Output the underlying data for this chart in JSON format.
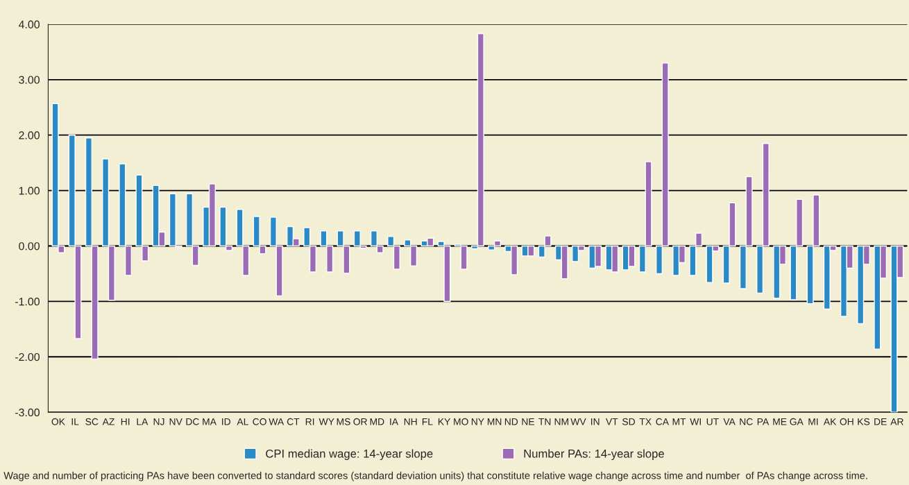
{
  "chart_data": {
    "type": "bar",
    "categories": [
      "OK",
      "IL",
      "SC",
      "AZ",
      "HI",
      "LA",
      "NJ",
      "NV",
      "DC",
      "MA",
      "ID",
      "AL",
      "CO",
      "WA",
      "CT",
      "RI",
      "WY",
      "MS",
      "OR",
      "MD",
      "IA",
      "NH",
      "FL",
      "KY",
      "MO",
      "NY",
      "MN",
      "ND",
      "NE",
      "TN",
      "NM",
      "WV",
      "IN",
      "VT",
      "SD",
      "TX",
      "CA",
      "MT",
      "WI",
      "UT",
      "VA",
      "NC",
      "PA",
      "ME",
      "GA",
      "MI",
      "AK",
      "OH",
      "KS",
      "DE",
      "AR"
    ],
    "series": [
      {
        "name": "CPI median wage: 14-year slope",
        "color": "#2a8ac6",
        "values": [
          2.57,
          2.0,
          1.95,
          1.57,
          1.48,
          1.28,
          1.09,
          0.94,
          0.94,
          0.7,
          0.7,
          0.66,
          0.53,
          0.52,
          0.35,
          0.33,
          0.27,
          0.27,
          0.27,
          0.27,
          0.17,
          0.11,
          0.09,
          0.08,
          0.03,
          -0.05,
          -0.07,
          -0.1,
          -0.18,
          -0.2,
          -0.25,
          -0.28,
          -0.4,
          -0.43,
          -0.43,
          -0.47,
          -0.5,
          -0.53,
          -0.53,
          -0.66,
          -0.67,
          -0.77,
          -0.85,
          -0.94,
          -0.97,
          -1.04,
          -1.14,
          -1.27,
          -1.4,
          -1.86,
          -3.0
        ]
      },
      {
        "name": "Number PAs: 14-year slope",
        "color": "#9b6bb5",
        "values": [
          -0.12,
          -1.67,
          -2.04,
          -0.98,
          -0.53,
          -0.27,
          0.25,
          -0.02,
          -0.35,
          1.12,
          -0.08,
          -0.53,
          -0.14,
          -0.9,
          0.13,
          -0.47,
          -0.47,
          -0.49,
          -0.04,
          -0.12,
          -0.42,
          -0.36,
          0.14,
          -1.0,
          -0.42,
          3.83,
          0.09,
          -0.52,
          -0.18,
          0.18,
          -0.59,
          -0.08,
          -0.37,
          -0.47,
          -0.37,
          1.52,
          3.3,
          -0.3,
          0.23,
          -0.09,
          0.78,
          1.25,
          1.85,
          -0.33,
          0.84,
          0.92,
          -0.08,
          -0.4,
          -0.33,
          -0.58,
          -0.57
        ]
      }
    ],
    "ylim": [
      -3,
      4
    ],
    "yticks": [
      {
        "value": -3,
        "label": "-3.00"
      },
      {
        "value": -2,
        "label": "-2.00"
      },
      {
        "value": -1,
        "label": "-1.00"
      },
      {
        "value": 0,
        "label": "0.00"
      },
      {
        "value": 1,
        "label": "1.00"
      },
      {
        "value": 2,
        "label": "2.00"
      },
      {
        "value": 3,
        "label": "3.00"
      },
      {
        "value": 4,
        "label": "4.00"
      }
    ],
    "grid": "y",
    "legend": "bottom",
    "annotations": [
      "Wage and number of practicing PAs have been converted to standard scores (standard deviation units) that constitute relative wage change across time and number  of PAs change across time."
    ]
  }
}
